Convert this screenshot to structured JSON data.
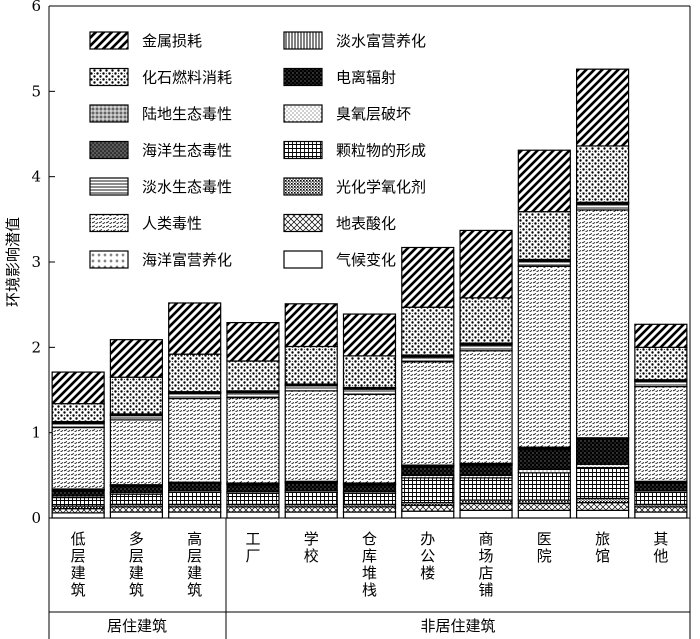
{
  "chart_data": {
    "type": "bar",
    "stacked": true,
    "ylabel": "环境影响潜值",
    "ylim": [
      0,
      6
    ],
    "yticks": [
      0,
      1,
      2,
      3,
      4,
      5,
      6
    ],
    "grid": false,
    "legend_position": "top-left",
    "categories": [
      "低层建筑",
      "多层建筑",
      "高层建筑",
      "工厂",
      "学校",
      "仓库堆栈",
      "办公楼",
      "商场店铺",
      "医院",
      "旅馆",
      "其他"
    ],
    "groups": [
      {
        "label": "居住建筑",
        "members": [
          "低层建筑",
          "多层建筑",
          "高层建筑"
        ]
      },
      {
        "label": "非居住建筑",
        "members": [
          "工厂",
          "学校",
          "仓库堆栈",
          "办公楼",
          "商场店铺",
          "医院",
          "旅馆",
          "其他"
        ]
      }
    ],
    "series": [
      {
        "name": "气候变化",
        "pattern": "blank",
        "values": [
          0.06,
          0.07,
          0.07,
          0.07,
          0.07,
          0.07,
          0.08,
          0.09,
          0.09,
          0.09,
          0.07
        ]
      },
      {
        "name": "地表酸化",
        "pattern": "crosshatch",
        "values": [
          0.05,
          0.06,
          0.06,
          0.06,
          0.06,
          0.06,
          0.07,
          0.08,
          0.08,
          0.09,
          0.06
        ]
      },
      {
        "name": "光化学氧化剂",
        "pattern": "dense-dots",
        "values": [
          0.03,
          0.03,
          0.03,
          0.03,
          0.03,
          0.03,
          0.03,
          0.04,
          0.04,
          0.05,
          0.03
        ]
      },
      {
        "name": "颗粒物的形成",
        "pattern": "grid",
        "values": [
          0.1,
          0.12,
          0.14,
          0.13,
          0.14,
          0.13,
          0.29,
          0.26,
          0.32,
          0.36,
          0.14
        ]
      },
      {
        "name": "臭氧层破坏",
        "pattern": "fine-dots",
        "values": [
          0.02,
          0.02,
          0.02,
          0.02,
          0.02,
          0.02,
          0.03,
          0.03,
          0.04,
          0.04,
          0.02
        ]
      },
      {
        "name": "电离辐射",
        "pattern": "black-dots",
        "values": [
          0.06,
          0.07,
          0.08,
          0.08,
          0.09,
          0.08,
          0.1,
          0.12,
          0.24,
          0.29,
          0.09
        ]
      },
      {
        "name": "淡水富营养化",
        "pattern": "vertical",
        "values": [
          0.01,
          0.01,
          0.01,
          0.01,
          0.01,
          0.01,
          0.01,
          0.01,
          0.01,
          0.01,
          0.01
        ]
      },
      {
        "name": "海洋富营养化",
        "pattern": "plus-dots",
        "values": [
          0.01,
          0.01,
          0.01,
          0.01,
          0.01,
          0.01,
          0.01,
          0.01,
          0.01,
          0.01,
          0.01
        ]
      },
      {
        "name": "人类毒性",
        "pattern": "small-diagonal",
        "values": [
          0.72,
          0.76,
          0.98,
          1.0,
          1.06,
          1.04,
          1.21,
          1.32,
          2.12,
          2.67,
          1.11
        ]
      },
      {
        "name": "淡水生态毒性",
        "pattern": "horizontal",
        "values": [
          0.05,
          0.05,
          0.06,
          0.06,
          0.06,
          0.06,
          0.06,
          0.07,
          0.06,
          0.07,
          0.06
        ]
      },
      {
        "name": "海洋生态毒性",
        "pattern": "dark-speckle",
        "values": [
          0.01,
          0.01,
          0.01,
          0.01,
          0.01,
          0.01,
          0.01,
          0.01,
          0.01,
          0.01,
          0.01
        ]
      },
      {
        "name": "陆地生态毒性",
        "pattern": "gray-dots",
        "values": [
          0.01,
          0.01,
          0.01,
          0.01,
          0.01,
          0.01,
          0.01,
          0.01,
          0.01,
          0.01,
          0.01
        ]
      },
      {
        "name": "化石燃料消耗",
        "pattern": "coarse-dots",
        "values": [
          0.21,
          0.43,
          0.44,
          0.35,
          0.44,
          0.37,
          0.56,
          0.53,
          0.56,
          0.66,
          0.38
        ]
      },
      {
        "name": "金属损耗",
        "pattern": "bold-diagonal",
        "values": [
          0.37,
          0.44,
          0.6,
          0.45,
          0.5,
          0.49,
          0.7,
          0.79,
          0.72,
          0.9,
          0.27
        ]
      }
    ],
    "totals": [
      1.71,
      2.09,
      2.52,
      2.29,
      2.51,
      2.39,
      3.17,
      3.37,
      4.31,
      5.27,
      2.28
    ]
  },
  "legend_order": [
    [
      "金属损耗",
      "淡水富营养化"
    ],
    [
      "化石燃料消耗",
      "电离辐射"
    ],
    [
      "陆地生态毒性",
      "臭氧层破坏"
    ],
    [
      "海洋生态毒性",
      "颗粒物的形成"
    ],
    [
      "淡水生态毒性",
      "光化学氧化剂"
    ],
    [
      "人类毒性",
      "地表酸化"
    ],
    [
      "海洋富营养化",
      "气候变化"
    ]
  ]
}
